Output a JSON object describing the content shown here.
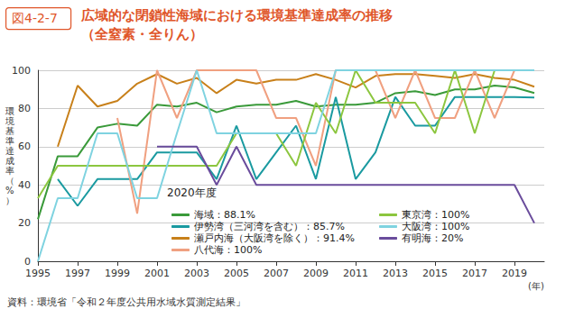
{
  "chart_data": {
    "type": "line",
    "figure_number": "図4-2-7",
    "title": "広域的な閉鎖性海域における環境基準達成率の推移",
    "subtitle": "（全窒素・全りん）",
    "y_label": "環境基準達成率（%）",
    "x_label": "(年)",
    "legend_title": "2020年度",
    "source": "資料：環境省「令和２年度公共用水域水質測定結果」",
    "x": [
      1995,
      1996,
      1997,
      1998,
      1999,
      2000,
      2001,
      2002,
      2003,
      2004,
      2005,
      2006,
      2007,
      2008,
      2009,
      2010,
      2011,
      2012,
      2013,
      2014,
      2015,
      2016,
      2017,
      2018,
      2019,
      2020
    ],
    "xlim": [
      1995,
      2020.5
    ],
    "xticks": [
      1995,
      1997,
      1999,
      2001,
      2003,
      2005,
      2007,
      2009,
      2011,
      2013,
      2015,
      2017,
      2019
    ],
    "ylim": [
      0,
      100
    ],
    "yticks": [
      0,
      20,
      40,
      60,
      80,
      100
    ],
    "grid": true,
    "series": [
      {
        "name": "海域：88.1%",
        "color": "#3a9a3a",
        "values": [
          22,
          55,
          55,
          70,
          72,
          71,
          82,
          81,
          83,
          78,
          81,
          82,
          82,
          84,
          81,
          82,
          82,
          83,
          88,
          89,
          87,
          90,
          90,
          92,
          91,
          88.1
        ]
      },
      {
        "name": "伊勢湾（三河湾を含む）：85.7%",
        "color": "#1a9aa0",
        "values": [
          null,
          43,
          29,
          43,
          43,
          43,
          57,
          57,
          57,
          43,
          71,
          43,
          57,
          71,
          43,
          86,
          43,
          57,
          86,
          71,
          71,
          86,
          86,
          86,
          86,
          85.7
        ]
      },
      {
        "name": "瀬戸内海（大阪湾を除く）：91.4%",
        "color": "#c8801a",
        "values": [
          null,
          60,
          92,
          81,
          84,
          93,
          98,
          93,
          96,
          88,
          95,
          93,
          95,
          95,
          98,
          95,
          91,
          97,
          98,
          98,
          97,
          96,
          98,
          96,
          95,
          91.4
        ]
      },
      {
        "name": "八代海：100%",
        "color": "#f0a080",
        "values": [
          null,
          null,
          null,
          null,
          75,
          25,
          100,
          75,
          100,
          100,
          100,
          100,
          75,
          75,
          50,
          100,
          100,
          100,
          75,
          100,
          75,
          75,
          100,
          75,
          100,
          100
        ]
      },
      {
        "name": "東京湾：100%",
        "color": "#8cc63f",
        "values": [
          33,
          50,
          50,
          50,
          50,
          50,
          50,
          50,
          50,
          50,
          67,
          67,
          67,
          50,
          83,
          67,
          100,
          83,
          83,
          83,
          67,
          100,
          67,
          100,
          100,
          100
        ]
      },
      {
        "name": "大阪湾：100%",
        "color": "#7fd3e0",
        "values": [
          0,
          33,
          33,
          67,
          67,
          33,
          33,
          67,
          100,
          67,
          67,
          67,
          67,
          67,
          67,
          100,
          100,
          100,
          100,
          100,
          100,
          100,
          100,
          100,
          100,
          100
        ]
      },
      {
        "name": "有明海：20%",
        "color": "#6a4c9c",
        "values": [
          null,
          null,
          null,
          null,
          null,
          null,
          60,
          60,
          60,
          40,
          60,
          40,
          40,
          40,
          40,
          40,
          40,
          40,
          40,
          40,
          40,
          40,
          40,
          40,
          40,
          20
        ]
      }
    ]
  }
}
